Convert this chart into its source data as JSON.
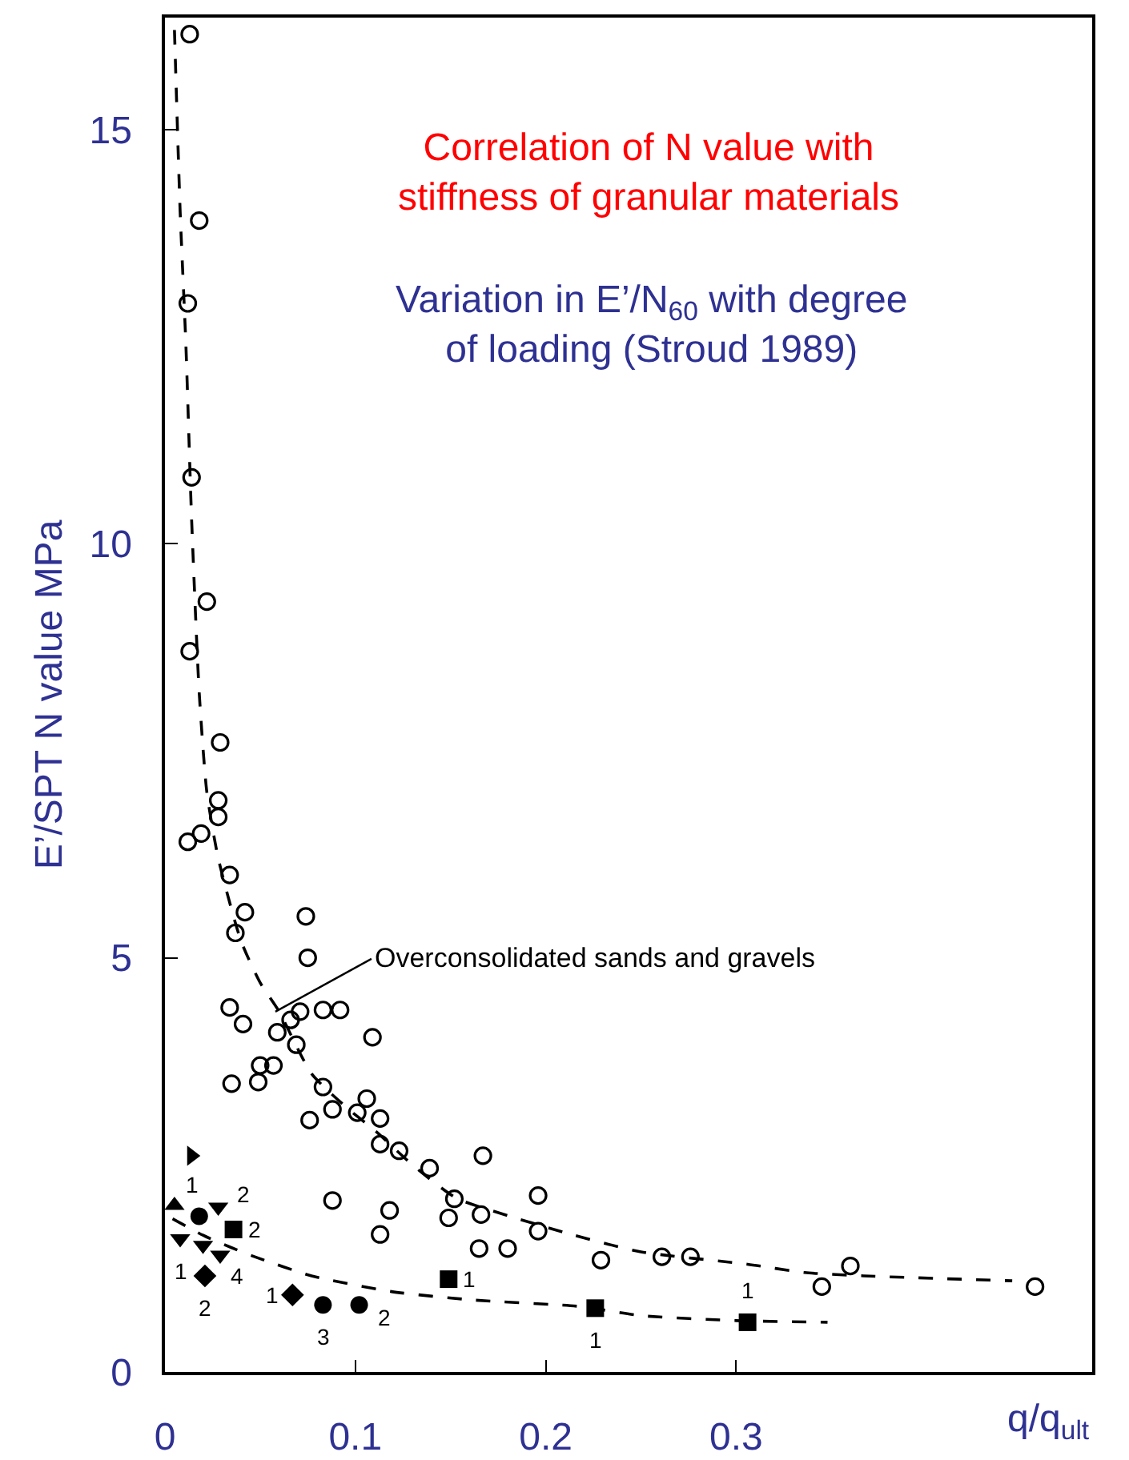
{
  "chart_data": {
    "type": "scatter",
    "title": "Correlation of N value with stiffness of granular materials",
    "subtitle": "Variation in E’/N$_{60}$ with degree of loading (Stroud 1989)",
    "xlabel": "q/q$_{ult}$",
    "ylabel": "E’/SPT N value MPa",
    "xlim": [
      0,
      0.487
    ],
    "ylim": [
      0,
      16.35
    ],
    "xticks": [
      0,
      0.1,
      0.2,
      0.3
    ],
    "yticks": [
      0,
      5,
      10,
      15
    ],
    "grid": false,
    "series": [
      {
        "type": "scatter",
        "marker": "circle-open",
        "color": "#000000",
        "x": [
          0.013,
          0.018,
          0.012,
          0.014,
          0.022,
          0.013,
          0.029,
          0.028,
          0.012,
          0.019,
          0.028,
          0.034,
          0.042,
          0.037,
          0.074,
          0.075,
          0.034,
          0.041,
          0.059,
          0.066,
          0.071,
          0.083,
          0.092,
          0.109,
          0.069,
          0.05,
          0.057,
          0.035,
          0.049,
          0.083,
          0.088,
          0.076,
          0.101,
          0.106,
          0.113,
          0.113,
          0.123,
          0.139,
          0.167,
          0.152,
          0.149,
          0.166,
          0.196,
          0.196,
          0.088,
          0.118,
          0.113,
          0.165,
          0.18,
          0.229,
          0.261,
          0.276,
          0.345,
          0.36,
          0.457
        ],
        "values": [
          16.15,
          13.9,
          12.9,
          10.8,
          9.3,
          8.7,
          7.6,
          6.9,
          6.4,
          6.5,
          6.7,
          6.0,
          5.55,
          5.3,
          5.5,
          5.0,
          4.4,
          4.2,
          4.1,
          4.25,
          4.35,
          4.37,
          4.37,
          4.04,
          3.95,
          3.7,
          3.7,
          3.48,
          3.5,
          3.44,
          3.17,
          3.04,
          3.13,
          3.3,
          3.06,
          2.75,
          2.67,
          2.46,
          2.61,
          2.09,
          1.86,
          1.9,
          2.13,
          1.7,
          2.07,
          1.95,
          1.66,
          1.49,
          1.49,
          1.35,
          1.39,
          1.39,
          1.03,
          1.28,
          1.03
        ]
      },
      {
        "type": "scatter",
        "marker": "triangle-right",
        "color": "#000000",
        "x": [
          0.014
        ],
        "values": [
          2.61
        ]
      },
      {
        "type": "scatter",
        "marker": "triangle",
        "color": "#000000",
        "x": [
          0.005
        ],
        "values": [
          2.01
        ]
      },
      {
        "type": "scatter",
        "marker": "triangle-down",
        "color": "#000000",
        "x": [
          0.028,
          0.008,
          0.02,
          0.029
        ],
        "values": [
          1.99,
          1.61,
          1.53,
          1.41
        ]
      },
      {
        "type": "scatter",
        "marker": "circle",
        "color": "#000000",
        "x": [
          0.018,
          0.083,
          0.102
        ],
        "values": [
          1.88,
          0.81,
          0.81
        ]
      },
      {
        "type": "scatter",
        "marker": "square",
        "color": "#000000",
        "x": [
          0.036,
          0.149,
          0.226,
          0.306
        ],
        "values": [
          1.72,
          1.12,
          0.77,
          0.6
        ]
      },
      {
        "type": "scatter",
        "marker": "diamond",
        "color": "#000000",
        "x": [
          0.021,
          0.067
        ],
        "values": [
          1.16,
          0.93
        ]
      },
      {
        "type": "line",
        "marker": "none",
        "line_style": "dashed",
        "color": "#000000",
        "x": [
          0.005,
          0.008,
          0.011,
          0.014,
          0.018,
          0.022,
          0.028,
          0.04,
          0.05,
          0.06,
          0.077,
          0.095,
          0.111,
          0.13,
          0.153,
          0.184,
          0.215,
          0.25,
          0.306,
          0.336,
          0.367,
          0.445
        ],
        "values": [
          16.2,
          14,
          12.4,
          10.3,
          8.2,
          7,
          6.2,
          5.2,
          4.7,
          4.35,
          3.6,
          3.2,
          2.9,
          2.5,
          2.1,
          1.86,
          1.65,
          1.45,
          1.3,
          1.2,
          1.16,
          1.1
        ]
      },
      {
        "type": "line",
        "marker": "none",
        "line_style": "dashed",
        "color": "#000000",
        "x": [
          0.004,
          0.02,
          0.035,
          0.046,
          0.077,
          0.119,
          0.161,
          0.218,
          0.25,
          0.3,
          0.348
        ],
        "values": [
          1.85,
          1.65,
          1.5,
          1.4,
          1.16,
          0.97,
          0.87,
          0.79,
          0.68,
          0.62,
          0.6
        ]
      }
    ],
    "annotations": [
      {
        "text": "Overconsolidated sands and gravels",
        "x": 0.058,
        "y": 4.35
      },
      {
        "text": "1",
        "x": 0.005,
        "y": 2.01
      },
      {
        "text": "2",
        "x": 0.028,
        "y": 1.99
      },
      {
        "text": "2",
        "x": 0.036,
        "y": 1.72
      },
      {
        "text": "1",
        "x": 0.008,
        "y": 1.61
      },
      {
        "text": "4",
        "x": 0.029,
        "y": 1.41
      },
      {
        "text": "2",
        "x": 0.021,
        "y": 1.16
      },
      {
        "text": "1",
        "x": 0.067,
        "y": 0.93
      },
      {
        "text": "3",
        "x": 0.083,
        "y": 0.81
      },
      {
        "text": "2",
        "x": 0.102,
        "y": 0.81
      },
      {
        "text": "1",
        "x": 0.149,
        "y": 1.12
      },
      {
        "text": "1",
        "x": 0.226,
        "y": 0.77
      },
      {
        "text": "1",
        "x": 0.306,
        "y": 0.6
      }
    ]
  }
}
